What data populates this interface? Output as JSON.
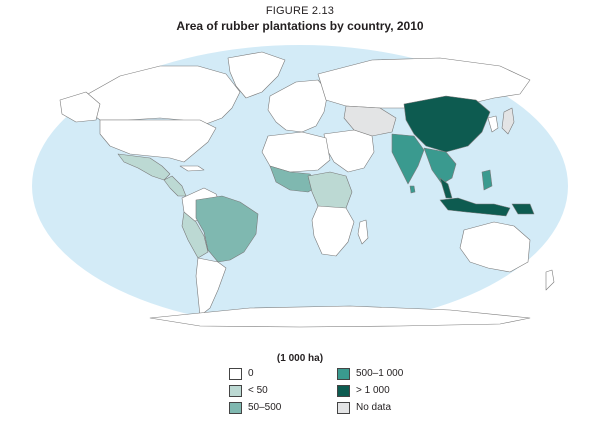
{
  "figure": {
    "label": "FIGURE 2.13",
    "title": "Area of rubber plantations by country, 2010"
  },
  "map": {
    "ocean_color": "#d3ebf7",
    "class_colors": {
      "zero": "#ffffff",
      "lt50": "#bcd9d3",
      "c50_500": "#7fb8b0",
      "c500_1000": "#3a9a8f",
      "gt1000": "#0d5b50",
      "nodata": "#e3e4e5"
    }
  },
  "legend": {
    "title": "(1 000 ha)",
    "items": [
      {
        "label": "0",
        "color": "#ffffff"
      },
      {
        "label": "< 50",
        "color": "#bcd9d3"
      },
      {
        "label": "50–500",
        "color": "#7fb8b0"
      },
      {
        "label": "500–1 000",
        "color": "#3a9a8f"
      },
      {
        "label": "> 1 000",
        "color": "#0d5b50"
      },
      {
        "label": "No data",
        "color": "#e3e4e5"
      }
    ]
  }
}
